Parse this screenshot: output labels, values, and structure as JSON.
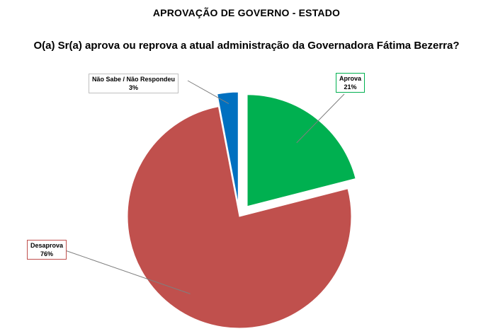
{
  "title": "APROVAÇÃO DE GOVERNO - ESTADO",
  "subtitle": "O(a) Sr(a) aprova ou reprova a atual administração da Governadora Fátima Bezerra?",
  "chart_data": {
    "type": "pie",
    "title": "APROVAÇÃO DE GOVERNO - ESTADO",
    "subtitle": "O(a) Sr(a) aprova ou reprova a atual administração da Governadora Fátima Bezerra?",
    "slices": [
      {
        "label": "Aprova",
        "value": 21,
        "value_label": "21%",
        "color": "#00b050",
        "exploded": true
      },
      {
        "label": "Desaprova",
        "value": 76,
        "value_label": "76%",
        "color": "#c0504d",
        "exploded": false
      },
      {
        "label": "Não Sabe / Não Respondeu",
        "value": 3,
        "value_label": "3%",
        "color": "#0070c0",
        "exploded": true
      }
    ]
  }
}
